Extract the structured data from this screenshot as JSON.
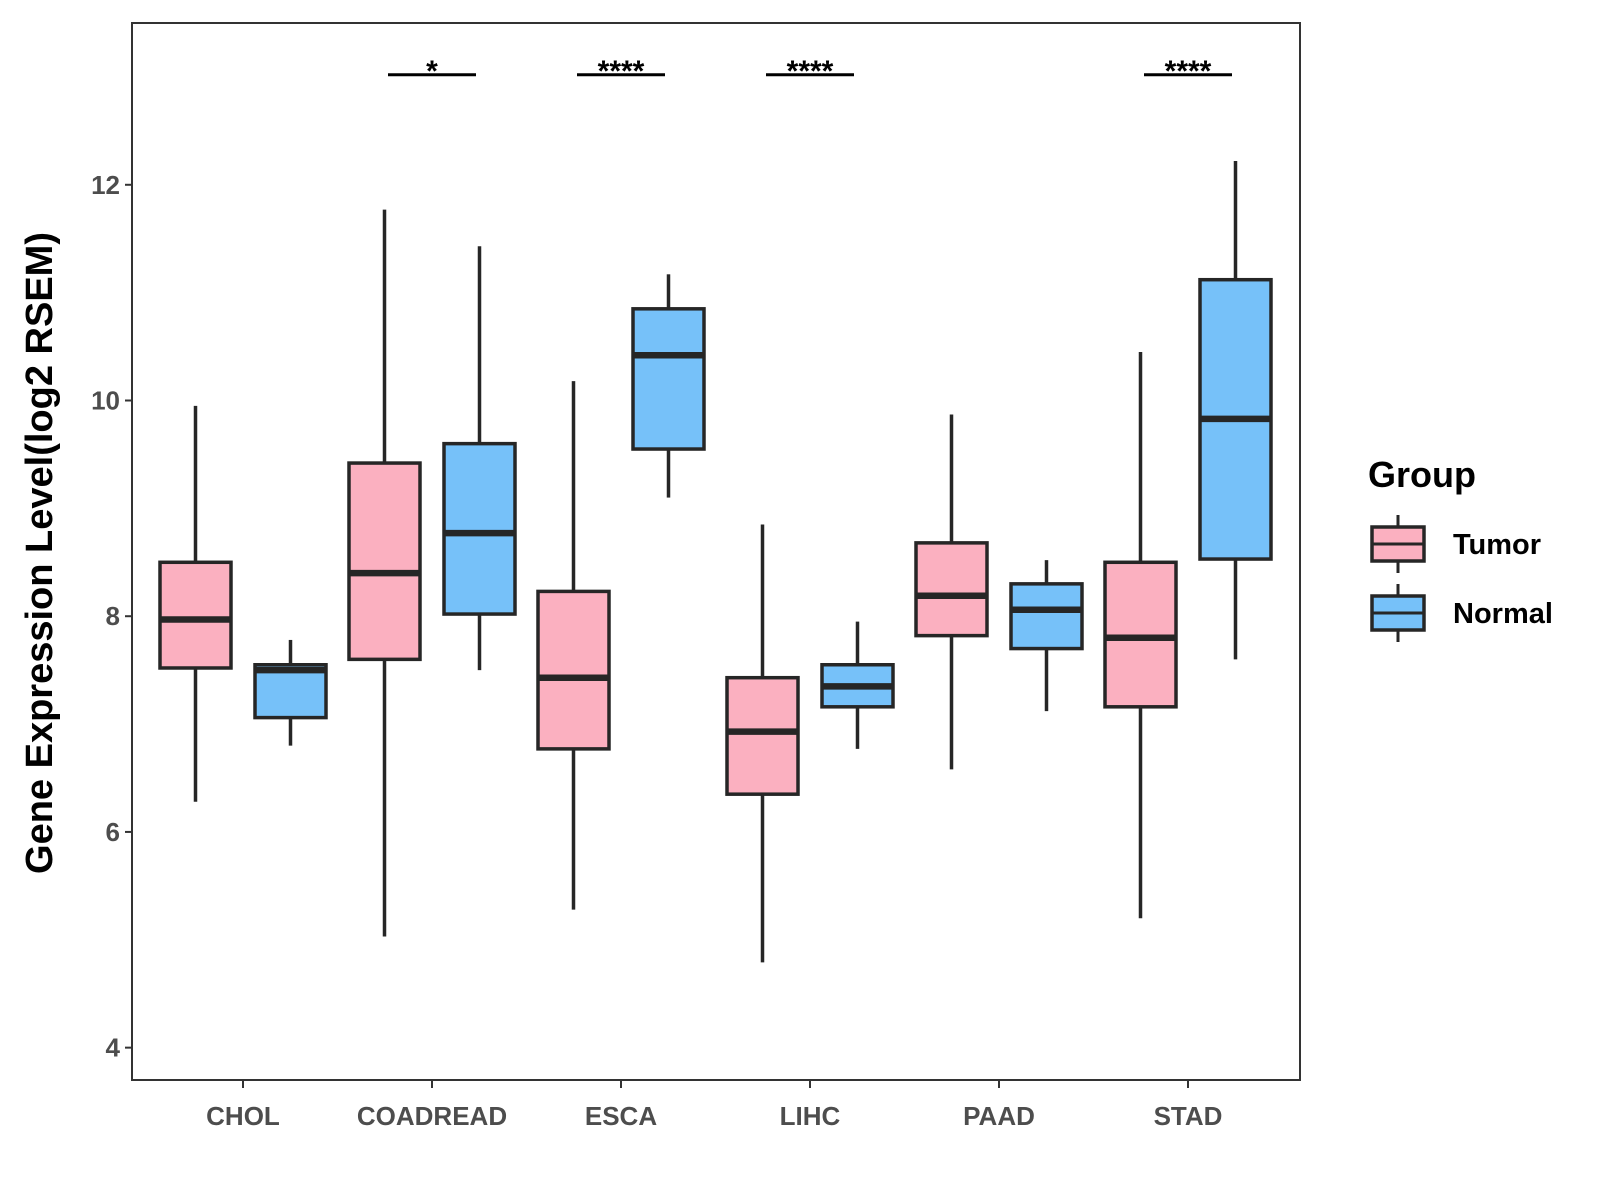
{
  "chart_data": {
    "type": "boxplot",
    "title": "",
    "xlabel": "",
    "ylabel": "Gene Expression Level(log2 RSEM)",
    "ylim": [
      3.7,
      13.5
    ],
    "yticks": [
      4,
      6,
      8,
      10,
      12
    ],
    "categories": [
      "CHOL",
      "COADREAD",
      "ESCA",
      "LIHC",
      "PAAD",
      "STAD"
    ],
    "legend": {
      "title": "Group",
      "position": "right"
    },
    "grid": false,
    "series": [
      {
        "name": "Tumor",
        "color": "#FBB0C0",
        "boxes": [
          {
            "category": "CHOL",
            "min": 6.28,
            "q1": 7.52,
            "median": 7.97,
            "q3": 8.5,
            "max": 9.95
          },
          {
            "category": "COADREAD",
            "min": 5.03,
            "q1": 7.6,
            "median": 8.4,
            "q3": 9.42,
            "max": 11.77
          },
          {
            "category": "ESCA",
            "min": 5.28,
            "q1": 6.77,
            "median": 7.43,
            "q3": 8.23,
            "max": 10.18
          },
          {
            "category": "LIHC",
            "min": 4.79,
            "q1": 6.35,
            "median": 6.93,
            "q3": 7.43,
            "max": 8.85
          },
          {
            "category": "PAAD",
            "min": 6.58,
            "q1": 7.82,
            "median": 8.19,
            "q3": 8.68,
            "max": 9.87
          },
          {
            "category": "STAD",
            "min": 5.2,
            "q1": 7.16,
            "median": 7.8,
            "q3": 8.5,
            "max": 10.45
          }
        ]
      },
      {
        "name": "Normal",
        "color": "#76C1F9",
        "boxes": [
          {
            "category": "CHOL",
            "min": 6.8,
            "q1": 7.06,
            "median": 7.5,
            "q3": 7.55,
            "max": 7.78
          },
          {
            "category": "COADREAD",
            "min": 7.5,
            "q1": 8.02,
            "median": 8.77,
            "q3": 9.6,
            "max": 11.43
          },
          {
            "category": "ESCA",
            "min": 9.1,
            "q1": 9.55,
            "median": 10.42,
            "q3": 10.85,
            "max": 11.17
          },
          {
            "category": "LIHC",
            "min": 6.77,
            "q1": 7.16,
            "median": 7.35,
            "q3": 7.55,
            "max": 7.95
          },
          {
            "category": "PAAD",
            "min": 7.12,
            "q1": 7.7,
            "median": 8.06,
            "q3": 8.3,
            "max": 8.52
          },
          {
            "category": "STAD",
            "min": 7.6,
            "q1": 8.53,
            "median": 9.83,
            "q3": 11.12,
            "max": 12.22
          }
        ]
      }
    ],
    "significance": [
      {
        "category": "CHOL",
        "label": ""
      },
      {
        "category": "COADREAD",
        "label": "*"
      },
      {
        "category": "ESCA",
        "label": "****"
      },
      {
        "category": "LIHC",
        "label": "****"
      },
      {
        "category": "PAAD",
        "label": ""
      },
      {
        "category": "STAD",
        "label": "****"
      }
    ],
    "significance_level": 13.02
  }
}
